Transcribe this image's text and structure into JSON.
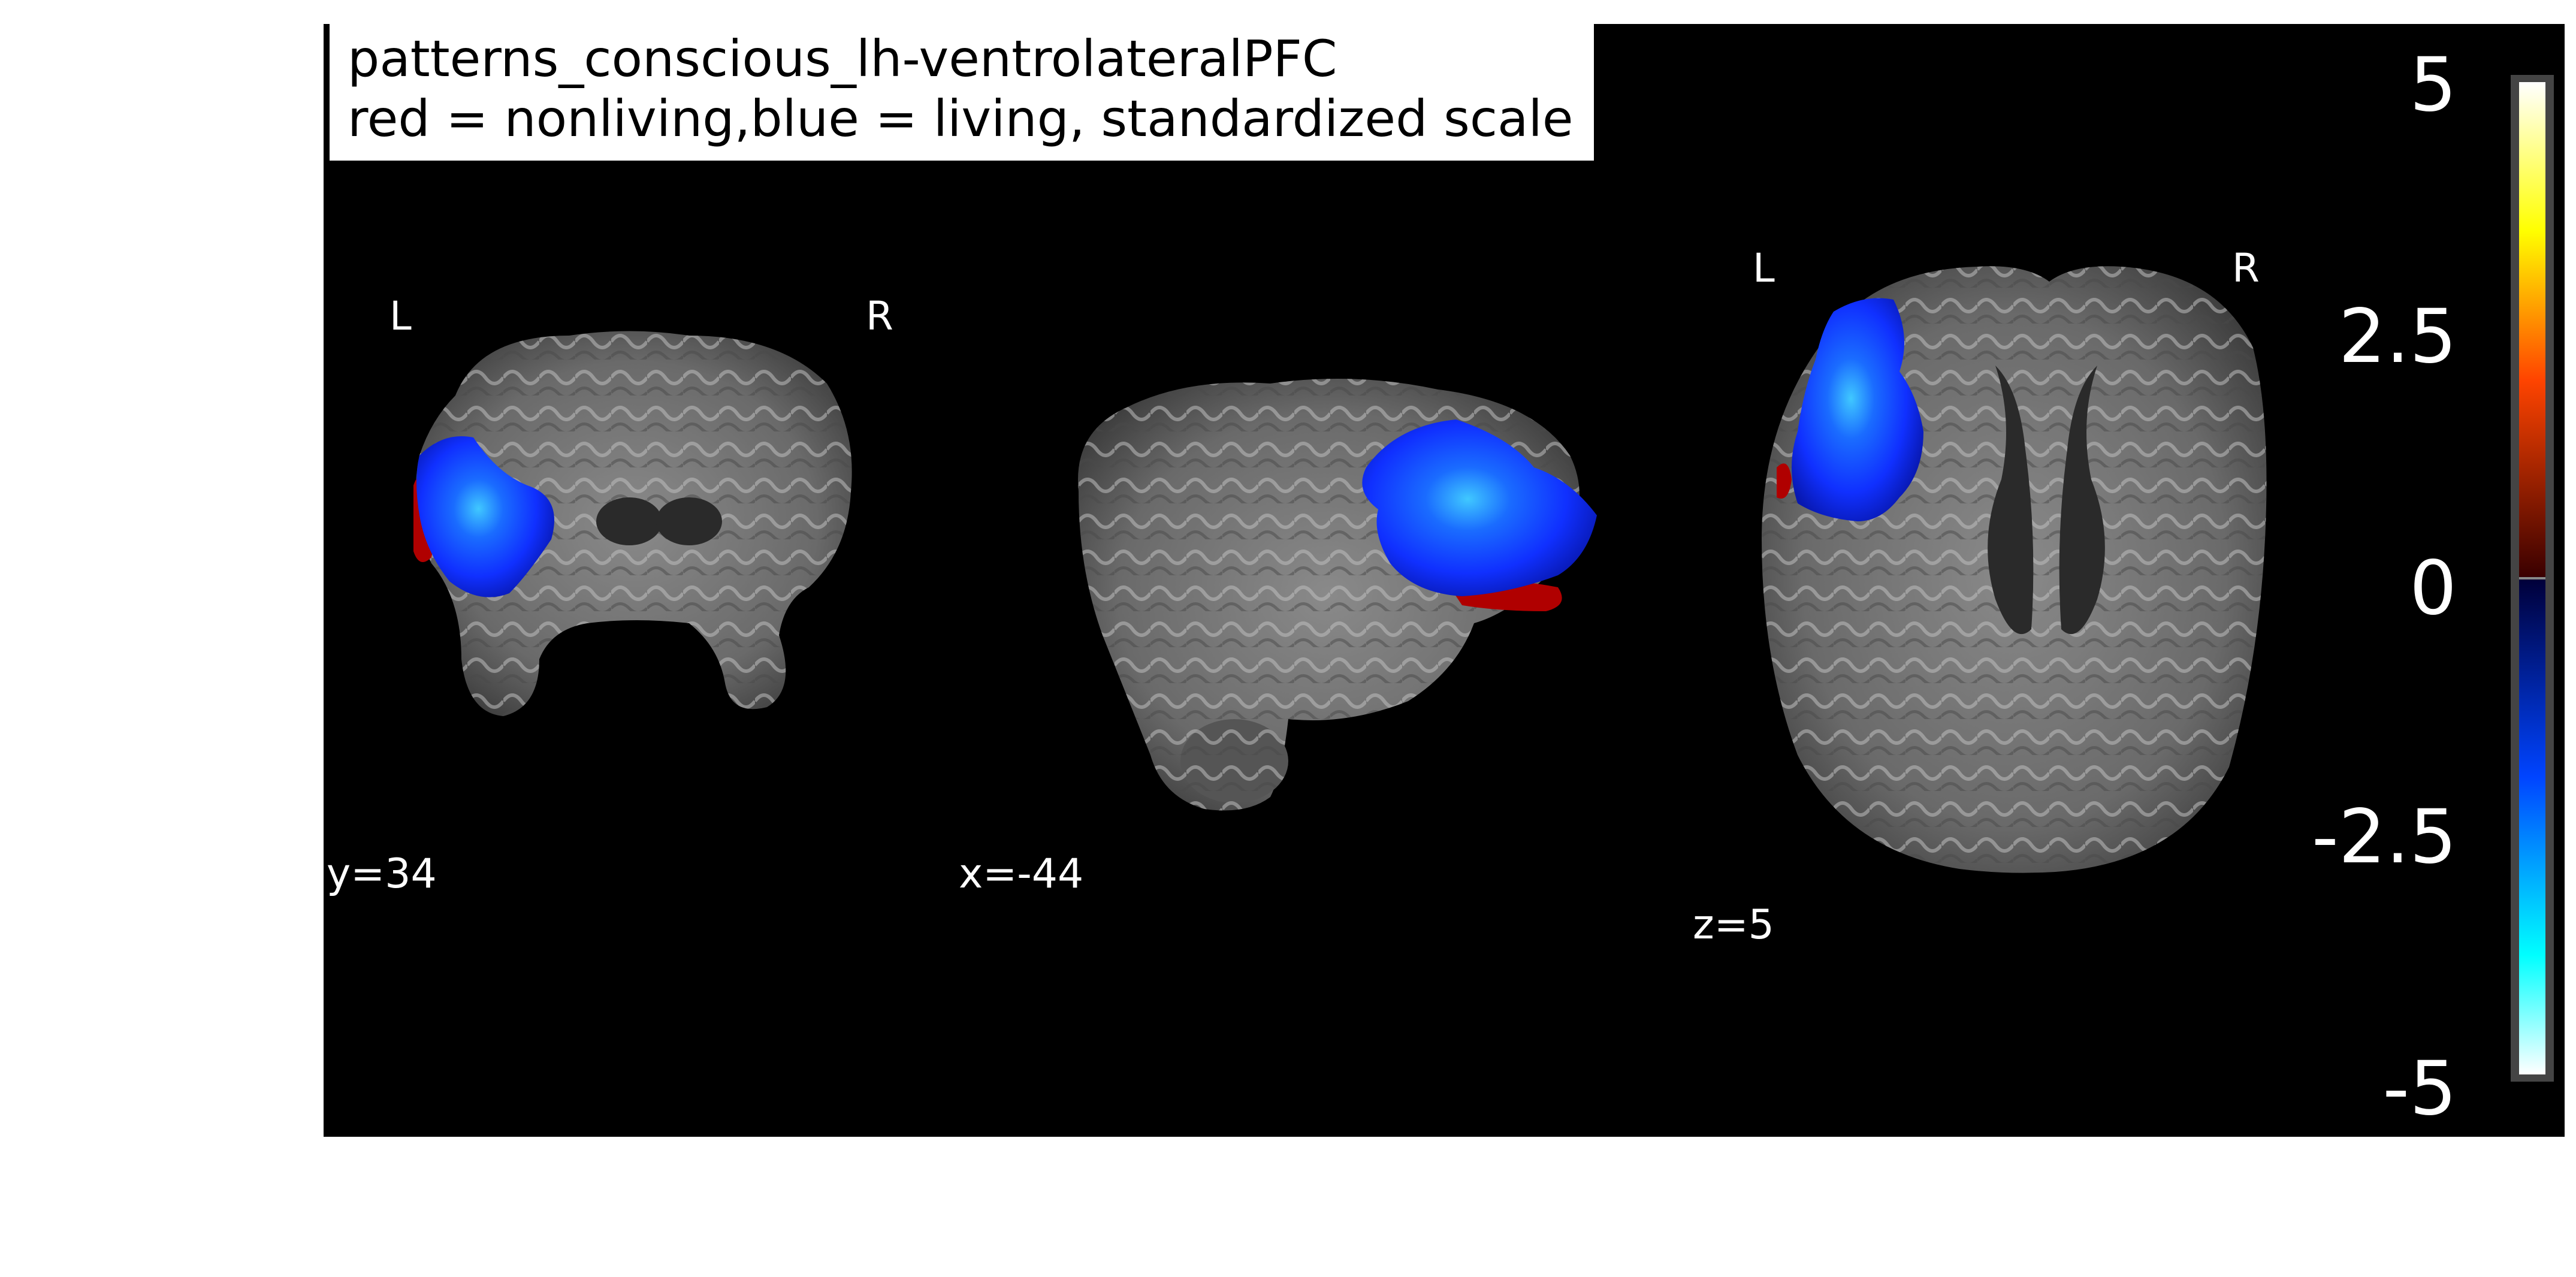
{
  "title": {
    "line1": "patterns_conscious_lh-ventrolateralPFC",
    "line2": "red = nonliving,blue = living, standardized scale"
  },
  "views": [
    {
      "name": "coronal",
      "left_label": "L",
      "right_label": "R",
      "coord": "y=34"
    },
    {
      "name": "sagittal",
      "coord": "x=-44"
    },
    {
      "name": "axial",
      "left_label": "L",
      "right_label": "R",
      "coord": "z=5"
    }
  ],
  "colorbar": {
    "ticks": [
      "5",
      "2.5",
      "0",
      "-2.5",
      "-5"
    ],
    "vmin": -5,
    "vmax": 5,
    "colors": {
      "top": "#ffffff",
      "upper": "#ffff00",
      "mid_upper": "#ff4400",
      "near_zero_pos": "#3a0000",
      "near_zero_neg": "#00003a",
      "mid_lower": "#0044ff",
      "lower": "#00ffff",
      "bottom": "#ffffff"
    }
  },
  "overlay_colors": {
    "living": "#1030ff",
    "living_peak": "#40c8ff",
    "nonliving": "#b00000",
    "brain_gray": "#6e6e6e"
  }
}
